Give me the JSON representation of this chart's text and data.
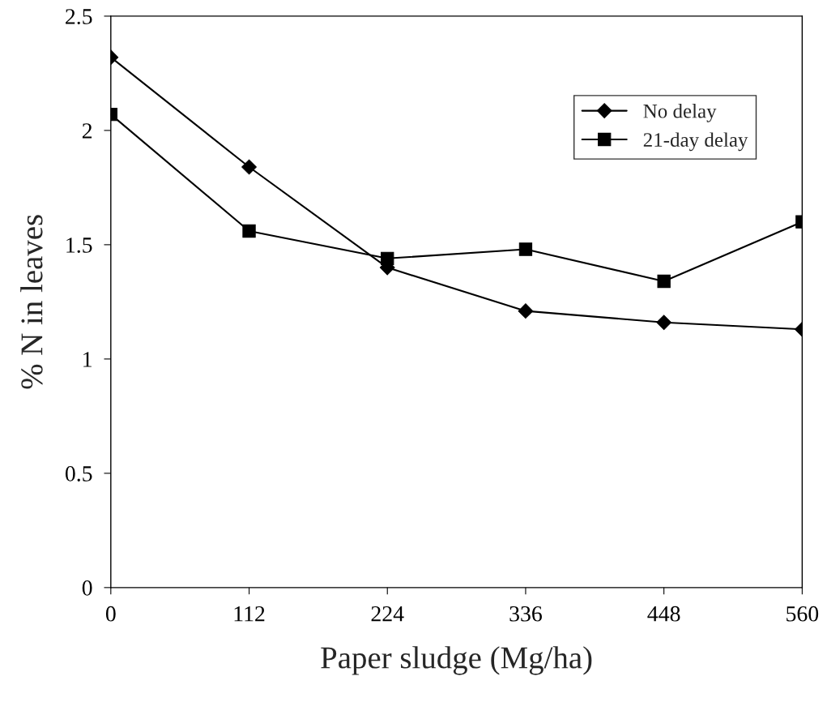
{
  "chart_data": {
    "type": "line",
    "xlabel": "Paper sludge (Mg/ha)",
    "ylabel": "% N in leaves",
    "x": [
      0,
      112,
      224,
      336,
      448,
      560
    ],
    "series": [
      {
        "name": "No delay",
        "color": "#000000",
        "marker": "diamond",
        "values": [
          2.32,
          1.84,
          1.4,
          1.21,
          1.16,
          1.13
        ]
      },
      {
        "name": "21-day delay",
        "color": "#000000",
        "marker": "square",
        "values": [
          2.07,
          1.56,
          1.44,
          1.48,
          1.34,
          1.6
        ]
      }
    ],
    "xlim": [
      0,
      560
    ],
    "xticks": [
      0,
      112,
      224,
      336,
      448,
      560
    ],
    "ylim": [
      0,
      2.5
    ],
    "yticks": [
      0,
      0.5,
      1,
      1.5,
      2,
      2.5
    ],
    "grid": false,
    "legend": "top right",
    "line_style": "solid"
  }
}
